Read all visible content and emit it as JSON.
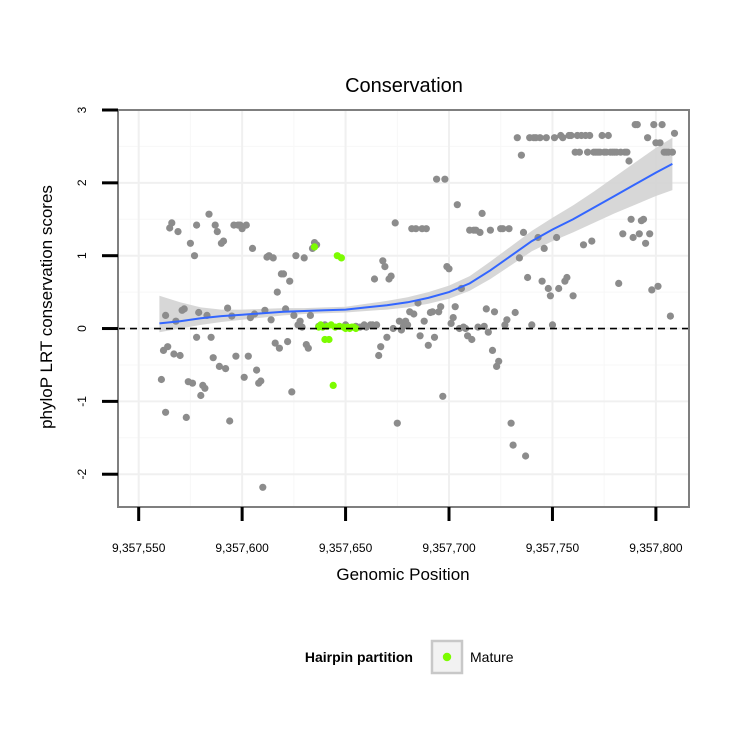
{
  "chart_data": {
    "type": "scatter",
    "title": "Conservation",
    "xlabel": "Genomic Position",
    "ylabel": "phyloP LRT conservation scores",
    "xlim": [
      9357540,
      9357816
    ],
    "ylim": [
      -2.45,
      3.0
    ],
    "x_ticks": [
      9357550,
      9357600,
      9357650,
      9357700,
      9357750,
      9357800
    ],
    "x_tick_labels": [
      "9,357,550",
      "9,357,600",
      "9,357,650",
      "9,357,700",
      "9,357,750",
      "9,357,800"
    ],
    "y_ticks": [
      -2,
      -1,
      0,
      1,
      2,
      3
    ],
    "y_tick_labels": [
      "-2",
      "-1",
      "0",
      "1",
      "2",
      "3"
    ],
    "reference_line": {
      "y": 0,
      "style": "dashed",
      "color": "#000000"
    },
    "grid": true,
    "legend": {
      "title": "Hairpin partition",
      "position": "bottom",
      "entries": [
        {
          "label": "Mature",
          "color": "#7CFC00"
        }
      ]
    },
    "colors": {
      "other": "#8c8c8c",
      "mature": "#7CFC00",
      "trend": "#3366FF",
      "band": "#d3d3d3",
      "frame": "#7f7f7f"
    },
    "series": [
      {
        "name": "Other",
        "points": [
          [
            9357561,
            -0.7
          ],
          [
            9357562,
            -0.3
          ],
          [
            9357563,
            -1.15
          ],
          [
            9357563,
            0.18
          ],
          [
            9357564,
            -0.25
          ],
          [
            9357565,
            1.38
          ],
          [
            9357566,
            1.45
          ],
          [
            9357567,
            -0.35
          ],
          [
            9357568,
            0.1
          ],
          [
            9357569,
            1.33
          ],
          [
            9357570,
            -0.37
          ],
          [
            9357571,
            0.25
          ],
          [
            9357572,
            0.27
          ],
          [
            9357573,
            -1.22
          ],
          [
            9357574,
            -0.73
          ],
          [
            9357575,
            1.17
          ],
          [
            9357576,
            -0.75
          ],
          [
            9357577,
            1.0
          ],
          [
            9357578,
            1.42
          ],
          [
            9357578,
            -0.12
          ],
          [
            9357579,
            0.22
          ],
          [
            9357580,
            -0.92
          ],
          [
            9357581,
            -0.78
          ],
          [
            9357582,
            -0.82
          ],
          [
            9357583,
            0.18
          ],
          [
            9357584,
            1.57
          ],
          [
            9357585,
            -0.12
          ],
          [
            9357586,
            -0.4
          ],
          [
            9357587,
            1.42
          ],
          [
            9357588,
            1.33
          ],
          [
            9357589,
            -0.52
          ],
          [
            9357590,
            1.17
          ],
          [
            9357591,
            1.2
          ],
          [
            9357592,
            -0.55
          ],
          [
            9357593,
            0.28
          ],
          [
            9357594,
            -1.27
          ],
          [
            9357595,
            0.17
          ],
          [
            9357596,
            1.42
          ],
          [
            9357597,
            -0.38
          ],
          [
            9357598,
            1.42
          ],
          [
            9357599,
            1.42
          ],
          [
            9357600,
            1.37
          ],
          [
            9357601,
            -0.67
          ],
          [
            9357602,
            1.42
          ],
          [
            9357603,
            -0.38
          ],
          [
            9357604,
            0.15
          ],
          [
            9357605,
            1.1
          ],
          [
            9357606,
            0.2
          ],
          [
            9357607,
            -0.57
          ],
          [
            9357608,
            -0.75
          ],
          [
            9357609,
            -0.72
          ],
          [
            9357610,
            -2.18
          ],
          [
            9357611,
            0.25
          ],
          [
            9357612,
            0.98
          ],
          [
            9357613,
            1.0
          ],
          [
            9357614,
            0.12
          ],
          [
            9357615,
            0.97
          ],
          [
            9357616,
            -0.2
          ],
          [
            9357617,
            0.5
          ],
          [
            9357618,
            -0.27
          ],
          [
            9357619,
            0.75
          ],
          [
            9357620,
            0.75
          ],
          [
            9357621,
            0.27
          ],
          [
            9357622,
            -0.18
          ],
          [
            9357623,
            0.65
          ],
          [
            9357624,
            -0.87
          ],
          [
            9357625,
            0.18
          ],
          [
            9357626,
            1.0
          ],
          [
            9357627,
            0.05
          ],
          [
            9357628,
            0.1
          ],
          [
            9357629,
            0.02
          ],
          [
            9357630,
            0.97
          ],
          [
            9357631,
            -0.22
          ],
          [
            9357632,
            -0.27
          ],
          [
            9357633,
            0.18
          ],
          [
            9357634,
            1.1
          ],
          [
            9357635,
            1.18
          ],
          [
            9357636,
            1.15
          ],
          [
            9357637,
            0.03
          ],
          [
            9357640,
            0.05
          ],
          [
            9357650,
            0.05
          ],
          [
            9357655,
            0.03
          ],
          [
            9357657,
            0.02
          ],
          [
            9357659,
            0.05
          ],
          [
            9357660,
            0.02
          ],
          [
            9357662,
            0.05
          ],
          [
            9357663,
            0.05
          ],
          [
            9357664,
            0.68
          ],
          [
            9357665,
            0.05
          ],
          [
            9357666,
            -0.37
          ],
          [
            9357667,
            -0.25
          ],
          [
            9357668,
            0.93
          ],
          [
            9357669,
            0.85
          ],
          [
            9357670,
            -0.12
          ],
          [
            9357671,
            0.68
          ],
          [
            9357672,
            0.72
          ],
          [
            9357673,
            0.0
          ],
          [
            9357674,
            1.45
          ],
          [
            9357675,
            -1.3
          ],
          [
            9357676,
            0.1
          ],
          [
            9357677,
            -0.02
          ],
          [
            9357678,
            0.03
          ],
          [
            9357679,
            0.1
          ],
          [
            9357680,
            0.05
          ],
          [
            9357681,
            0.23
          ],
          [
            9357682,
            1.37
          ],
          [
            9357683,
            0.2
          ],
          [
            9357684,
            1.37
          ],
          [
            9357685,
            0.35
          ],
          [
            9357686,
            -0.1
          ],
          [
            9357687,
            1.37
          ],
          [
            9357688,
            0.1
          ],
          [
            9357689,
            1.37
          ],
          [
            9357690,
            -0.23
          ],
          [
            9357691,
            0.22
          ],
          [
            9357692,
            0.23
          ],
          [
            9357693,
            -0.12
          ],
          [
            9357694,
            2.05
          ],
          [
            9357695,
            0.23
          ],
          [
            9357696,
            0.3
          ],
          [
            9357697,
            -0.93
          ],
          [
            9357698,
            2.05
          ],
          [
            9357699,
            0.85
          ],
          [
            9357700,
            0.82
          ],
          [
            9357701,
            0.07
          ],
          [
            9357702,
            0.15
          ],
          [
            9357703,
            0.3
          ],
          [
            9357704,
            1.7
          ],
          [
            9357705,
            0.0
          ],
          [
            9357706,
            0.55
          ],
          [
            9357707,
            0.02
          ],
          [
            9357708,
            0.0
          ],
          [
            9357709,
            -0.1
          ],
          [
            9357710,
            1.35
          ],
          [
            9357711,
            -0.15
          ],
          [
            9357712,
            1.35
          ],
          [
            9357713,
            1.35
          ],
          [
            9357714,
            0.02
          ],
          [
            9357715,
            1.32
          ],
          [
            9357716,
            1.58
          ],
          [
            9357717,
            0.03
          ],
          [
            9357718,
            0.27
          ],
          [
            9357719,
            -0.05
          ],
          [
            9357720,
            1.35
          ],
          [
            9357721,
            -0.3
          ],
          [
            9357722,
            0.23
          ],
          [
            9357723,
            -0.52
          ],
          [
            9357724,
            -0.45
          ],
          [
            9357725,
            1.37
          ],
          [
            9357726,
            1.37
          ],
          [
            9357727,
            0.05
          ],
          [
            9357728,
            0.12
          ],
          [
            9357729,
            1.37
          ],
          [
            9357730,
            -1.3
          ],
          [
            9357731,
            -1.6
          ],
          [
            9357732,
            0.22
          ],
          [
            9357733,
            2.62
          ],
          [
            9357734,
            0.97
          ],
          [
            9357735,
            2.38
          ],
          [
            9357736,
            1.32
          ],
          [
            9357737,
            -1.75
          ],
          [
            9357738,
            0.7
          ],
          [
            9357739,
            2.62
          ],
          [
            9357740,
            0.05
          ],
          [
            9357741,
            2.62
          ],
          [
            9357742,
            2.62
          ],
          [
            9357743,
            1.25
          ],
          [
            9357744,
            2.62
          ],
          [
            9357745,
            0.65
          ],
          [
            9357746,
            1.1
          ],
          [
            9357747,
            2.62
          ],
          [
            9357748,
            0.55
          ],
          [
            9357749,
            0.45
          ],
          [
            9357750,
            0.05
          ],
          [
            9357751,
            2.62
          ],
          [
            9357752,
            1.25
          ],
          [
            9357753,
            0.55
          ],
          [
            9357754,
            2.65
          ],
          [
            9357755,
            2.62
          ],
          [
            9357756,
            0.65
          ],
          [
            9357757,
            0.7
          ],
          [
            9357758,
            2.65
          ],
          [
            9357759,
            2.65
          ],
          [
            9357760,
            0.45
          ],
          [
            9357761,
            2.42
          ],
          [
            9357762,
            2.65
          ],
          [
            9357763,
            2.42
          ],
          [
            9357764,
            2.65
          ],
          [
            9357765,
            1.15
          ],
          [
            9357766,
            2.65
          ],
          [
            9357767,
            2.42
          ],
          [
            9357768,
            2.65
          ],
          [
            9357769,
            1.2
          ],
          [
            9357770,
            2.42
          ],
          [
            9357771,
            2.42
          ],
          [
            9357772,
            2.42
          ],
          [
            9357773,
            2.42
          ],
          [
            9357774,
            2.65
          ],
          [
            9357775,
            2.42
          ],
          [
            9357776,
            2.42
          ],
          [
            9357777,
            2.65
          ],
          [
            9357778,
            2.42
          ],
          [
            9357779,
            2.42
          ],
          [
            9357780,
            2.42
          ],
          [
            9357781,
            2.42
          ],
          [
            9357782,
            0.62
          ],
          [
            9357783,
            2.42
          ],
          [
            9357784,
            1.3
          ],
          [
            9357785,
            2.42
          ],
          [
            9357786,
            2.42
          ],
          [
            9357787,
            2.3
          ],
          [
            9357788,
            1.5
          ],
          [
            9357789,
            1.25
          ],
          [
            9357790,
            2.8
          ],
          [
            9357791,
            2.8
          ],
          [
            9357792,
            1.3
          ],
          [
            9357793,
            1.48
          ],
          [
            9357794,
            1.5
          ],
          [
            9357795,
            1.17
          ],
          [
            9357796,
            2.62
          ],
          [
            9357797,
            1.3
          ],
          [
            9357798,
            0.53
          ],
          [
            9357799,
            2.8
          ],
          [
            9357800,
            2.55
          ],
          [
            9357801,
            0.58
          ],
          [
            9357802,
            2.55
          ],
          [
            9357803,
            2.8
          ],
          [
            9357804,
            2.42
          ],
          [
            9357805,
            2.42
          ],
          [
            9357806,
            2.42
          ],
          [
            9357807,
            0.17
          ],
          [
            9357808,
            2.42
          ],
          [
            9357809,
            2.68
          ]
        ]
      },
      {
        "name": "Mature",
        "points": [
          [
            9357635,
            1.12
          ],
          [
            9357637,
            0.02
          ],
          [
            9357638,
            0.05
          ],
          [
            9357639,
            0.02
          ],
          [
            9357640,
            -0.15
          ],
          [
            9357641,
            0.03
          ],
          [
            9357642,
            -0.15
          ],
          [
            9357643,
            0.05
          ],
          [
            9357644,
            -0.78
          ],
          [
            9357645,
            0.02
          ],
          [
            9357646,
            1.0
          ],
          [
            9357647,
            0.03
          ],
          [
            9357648,
            0.97
          ],
          [
            9357649,
            0.02
          ],
          [
            9357650,
            0.0
          ],
          [
            9357651,
            0.02
          ],
          [
            9357652,
            0.0
          ],
          [
            9357653,
            0.02
          ],
          [
            9357654,
            0.02
          ],
          [
            9357655,
            0.0
          ]
        ]
      }
    ],
    "trend": {
      "name": "smooth",
      "x": [
        9357560,
        9357570,
        9357580,
        9357590,
        9357600,
        9357610,
        9357620,
        9357630,
        9357640,
        9357650,
        9357660,
        9357670,
        9357680,
        9357690,
        9357700,
        9357710,
        9357720,
        9357730,
        9357740,
        9357750,
        9357760,
        9357770,
        9357780,
        9357790,
        9357800,
        9357808
      ],
      "y": [
        0.07,
        0.1,
        0.14,
        0.17,
        0.19,
        0.21,
        0.23,
        0.24,
        0.25,
        0.26,
        0.29,
        0.32,
        0.36,
        0.42,
        0.5,
        0.62,
        0.8,
        1.0,
        1.2,
        1.36,
        1.5,
        1.66,
        1.82,
        1.98,
        2.14,
        2.26
      ],
      "lower": [
        -0.05,
        0.0,
        0.05,
        0.09,
        0.12,
        0.15,
        0.18,
        0.2,
        0.21,
        0.22,
        0.24,
        0.26,
        0.29,
        0.34,
        0.41,
        0.52,
        0.68,
        0.87,
        1.06,
        1.2,
        1.32,
        1.45,
        1.58,
        1.7,
        1.82,
        1.9
      ],
      "upper": [
        0.45,
        0.36,
        0.29,
        0.26,
        0.26,
        0.27,
        0.28,
        0.28,
        0.29,
        0.3,
        0.34,
        0.38,
        0.43,
        0.5,
        0.59,
        0.72,
        0.92,
        1.13,
        1.34,
        1.52,
        1.69,
        1.88,
        2.08,
        2.28,
        2.48,
        2.62
      ]
    }
  }
}
